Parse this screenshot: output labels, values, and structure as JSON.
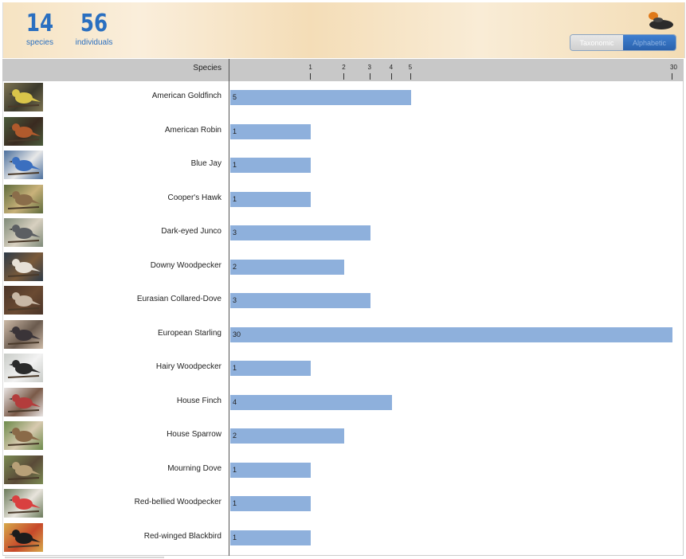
{
  "header": {
    "species_count": "14",
    "species_label": "species",
    "individuals_count": "56",
    "individuals_label": "individuals",
    "toggle": {
      "left": "Taxonomic",
      "right": "Alphabetic",
      "selected": "Alphabetic"
    }
  },
  "axis": {
    "species_header": "Species"
  },
  "colors": {
    "bar": "#8eb0dc",
    "accent": "#2a6fc0"
  },
  "chart_data": {
    "type": "bar",
    "orientation": "horizontal",
    "xlabel": "",
    "ylabel": "Species",
    "xlim": [
      0,
      30
    ],
    "x_scale": "sqrt",
    "ticks": [
      1,
      2,
      3,
      4,
      5,
      30
    ],
    "categories": [
      "American Goldfinch",
      "American Robin",
      "Blue Jay",
      "Cooper's Hawk",
      "Dark-eyed Junco",
      "Downy Woodpecker",
      "Eurasian Collared-Dove",
      "European Starling",
      "Hairy Woodpecker",
      "House Finch",
      "House Sparrow",
      "Mourning Dove",
      "Red-bellied Woodpecker",
      "Red-winged Blackbird"
    ],
    "values": [
      5,
      1,
      1,
      1,
      3,
      2,
      3,
      30,
      1,
      4,
      2,
      1,
      1,
      1
    ],
    "thumb_colors": [
      [
        "#7d7452",
        "#d9c54a",
        "#3c3a2c"
      ],
      [
        "#4a5a3a",
        "#b05a2c",
        "#3a2a20"
      ],
      [
        "#4a6e9c",
        "#3b6fbf",
        "#e8e8e8"
      ],
      [
        "#5e6b3c",
        "#8a6d4a",
        "#c9b27a"
      ],
      [
        "#7e8a78",
        "#5b5e62",
        "#d8d0c0"
      ],
      [
        "#2e3b48",
        "#e6e0d6",
        "#7a5a3a"
      ],
      [
        "#4a3428",
        "#c8b8a6",
        "#6a4a32"
      ],
      [
        "#cbb9a6",
        "#3a3438",
        "#6a5a4e"
      ],
      [
        "#c9ccc8",
        "#2a2a2a",
        "#f2f2f2"
      ],
      [
        "#e8e4e2",
        "#b33c3c",
        "#7a5a48"
      ],
      [
        "#6c8a4a",
        "#8a6a48",
        "#d8cab0"
      ],
      [
        "#7a8a52",
        "#b8a078",
        "#5a4a38"
      ],
      [
        "#6a7a5a",
        "#d94040",
        "#e8e4dc"
      ],
      [
        "#d6a84a",
        "#1c1c1c",
        "#c7482a"
      ]
    ]
  }
}
